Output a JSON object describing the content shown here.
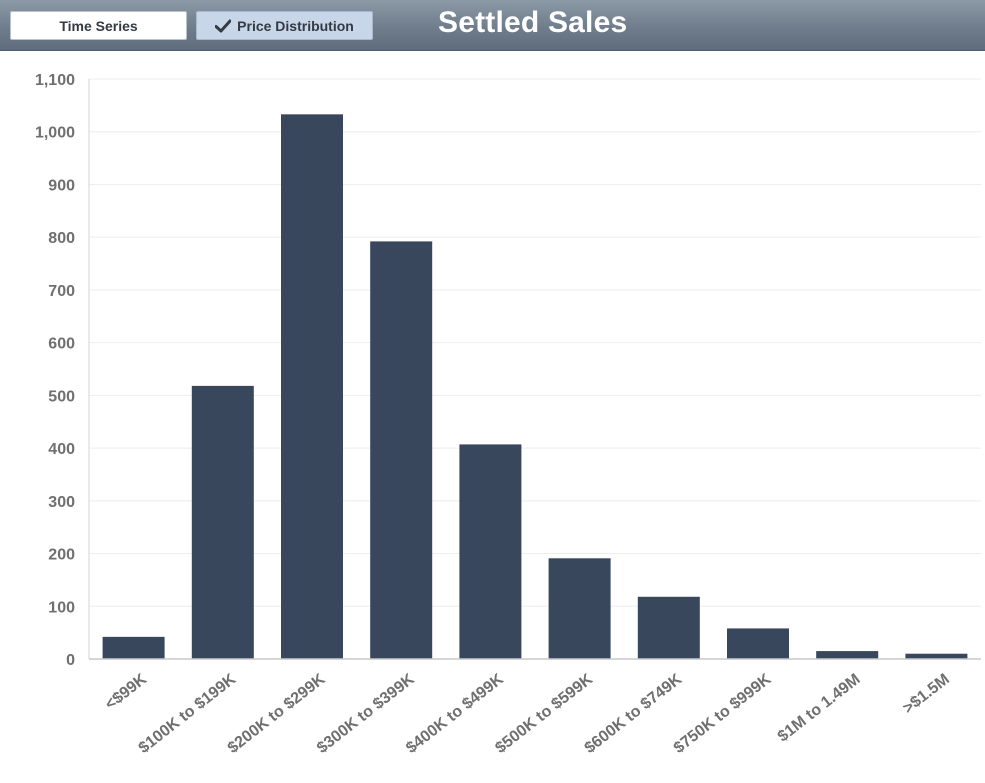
{
  "toolbar": {
    "time_series_label": "Time Series",
    "price_distribution_label": "Price Distribution",
    "active_icon": "check-icon"
  },
  "title": "Settled Sales",
  "colors": {
    "bar": "#38475c",
    "header_top": "#8c99a6",
    "header_bottom": "#5f6d7c",
    "active_tab": "#c8d6ea",
    "axis_text": "#6f6f6f",
    "grid": "#eeeeee"
  },
  "chart_data": {
    "type": "bar",
    "categories": [
      "<$99K",
      "$100K to $199K",
      "$200K to $299K",
      "$300K to $399K",
      "$400K to $499K",
      "$500K to $599K",
      "$600K to $749K",
      "$750K to $999K",
      "$1M to 1.49M",
      ">$1.5M"
    ],
    "values": [
      42,
      518,
      1033,
      792,
      407,
      191,
      118,
      58,
      15,
      10
    ],
    "yticks": [
      "0",
      "100",
      "200",
      "300",
      "400",
      "500",
      "600",
      "700",
      "800",
      "900",
      "1,000",
      "1,100"
    ],
    "ylim": [
      0,
      1100
    ],
    "grid": true,
    "legend": false
  }
}
